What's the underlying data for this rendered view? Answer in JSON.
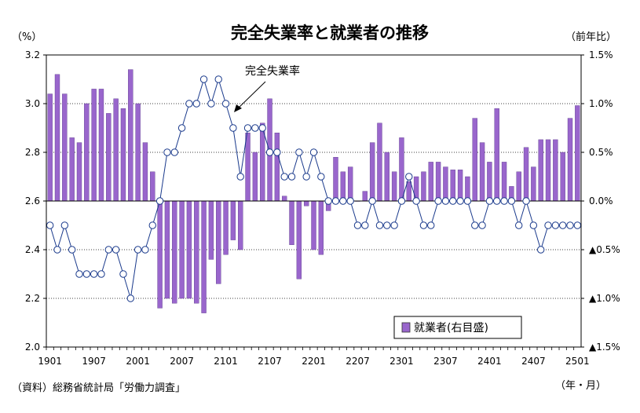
{
  "chart_data": {
    "type": "bar+line",
    "title": "完全失業率と就業者の推移",
    "left_unit": "（%）",
    "right_unit": "（前年比）",
    "left_axis": {
      "min": 2.0,
      "max": 3.2,
      "ticks": [
        "2.0",
        "2.2",
        "2.4",
        "2.6",
        "2.8",
        "3.0",
        "3.2"
      ]
    },
    "right_axis": {
      "min": -1.5,
      "max": 1.5,
      "ticks": [
        "▲1.5%",
        "▲1.0%",
        "▲0.5%",
        "0.0%",
        "0.5%",
        "1.0%",
        "1.5%"
      ]
    },
    "x_tick_labels": [
      "1901",
      "1907",
      "2001",
      "2007",
      "2101",
      "2107",
      "2201",
      "2207",
      "2301",
      "2307",
      "2401",
      "2407",
      "2501"
    ],
    "x_axis_unit": "（年・月）",
    "source_note": "（資料）総務省統計局「労働力調査」",
    "line_annotation": "完全失業率",
    "bar_series": {
      "name": "就業者(右目盛)",
      "color": "#9966cc",
      "values": [
        1.1,
        1.3,
        1.1,
        0.65,
        0.6,
        1.0,
        1.15,
        1.15,
        0.9,
        1.05,
        0.95,
        1.35,
        1.0,
        0.6,
        0.3,
        -1.1,
        -1.0,
        -1.05,
        -1.0,
        -1.0,
        -1.05,
        -1.15,
        -0.6,
        -0.85,
        -0.55,
        -0.4,
        -0.5,
        0.7,
        0.5,
        0.8,
        1.05,
        0.7,
        0.05,
        -0.45,
        -0.8,
        -0.05,
        -0.5,
        -0.55,
        -0.1,
        0.45,
        0.3,
        0.35,
        0.0,
        0.1,
        0.6,
        0.8,
        0.5,
        0.3,
        0.65,
        0.2,
        0.25,
        0.3,
        0.4,
        0.4,
        0.35,
        0.32,
        0.32,
        0.25,
        0.85,
        0.6,
        0.4,
        0.95,
        0.4,
        0.15,
        0.3,
        0.55,
        0.35,
        0.63,
        0.63,
        0.63,
        0.5,
        0.85,
        0.98
      ]
    },
    "line_series": {
      "name": "完全失業率",
      "values": [
        2.5,
        2.4,
        2.5,
        2.4,
        2.3,
        2.3,
        2.3,
        2.3,
        2.4,
        2.4,
        2.3,
        2.2,
        2.4,
        2.4,
        2.5,
        2.6,
        2.8,
        2.8,
        2.9,
        3.0,
        3.0,
        3.1,
        3.0,
        3.1,
        3.0,
        2.9,
        2.7,
        2.9,
        2.9,
        2.9,
        2.8,
        2.8,
        2.7,
        2.7,
        2.8,
        2.7,
        2.8,
        2.7,
        2.6,
        2.6,
        2.6,
        2.6,
        2.5,
        2.5,
        2.6,
        2.5,
        2.5,
        2.5,
        2.6,
        2.7,
        2.6,
        2.5,
        2.5,
        2.6,
        2.6,
        2.6,
        2.6,
        2.6,
        2.5,
        2.5,
        2.6,
        2.6,
        2.6,
        2.6,
        2.5,
        2.6,
        2.5,
        2.4,
        2.5,
        2.5,
        2.5,
        2.5,
        2.5
      ]
    },
    "grid": "horizontal-dotted",
    "legend_position": "bottom-right"
  }
}
